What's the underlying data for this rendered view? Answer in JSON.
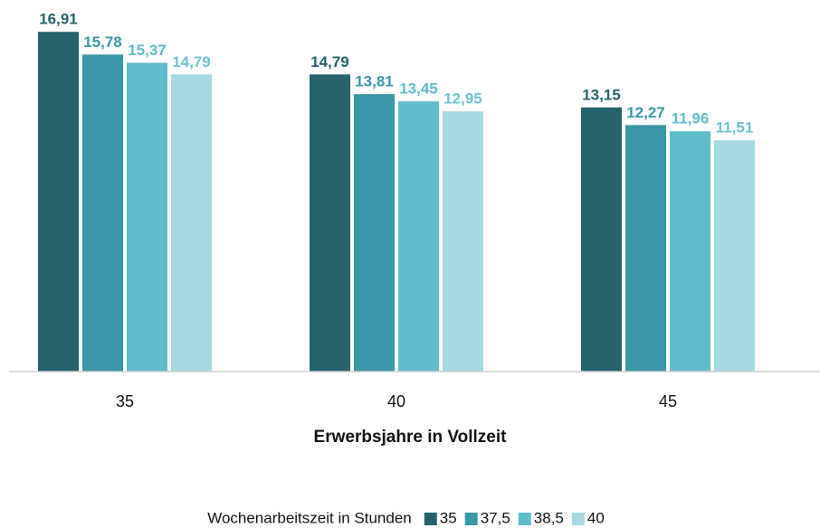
{
  "chart_data": {
    "type": "bar",
    "x_label": "Erwerbsjahre in Vollzeit",
    "legend_title": "Wochenarbeitszeit in Stunden",
    "legend_position": "bottom",
    "categories": [
      "35",
      "40",
      "45"
    ],
    "series": [
      {
        "name": "35",
        "color": "#24636c",
        "label_color": "#24636c",
        "values": [
          16.91,
          14.79,
          13.15
        ],
        "value_labels": [
          "16,91",
          "14,79",
          "13,15"
        ]
      },
      {
        "name": "37,5",
        "color": "#3997a8",
        "label_color": "#3997a8",
        "values": [
          15.78,
          13.81,
          12.27
        ],
        "value_labels": [
          "15,78",
          "13,81",
          "12,27"
        ]
      },
      {
        "name": "38,5",
        "color": "#5fbccb",
        "label_color": "#5fbccb",
        "values": [
          15.37,
          13.45,
          11.96
        ],
        "value_labels": [
          "15,37",
          "13,45",
          "11,96"
        ]
      },
      {
        "name": "40",
        "color": "#a6d9e2",
        "label_color": "#6cc3d1",
        "values": [
          14.79,
          12.95,
          11.51
        ],
        "value_labels": [
          "14,79",
          "12,95",
          "11,51"
        ]
      }
    ],
    "ylim": [
      0,
      18
    ]
  }
}
